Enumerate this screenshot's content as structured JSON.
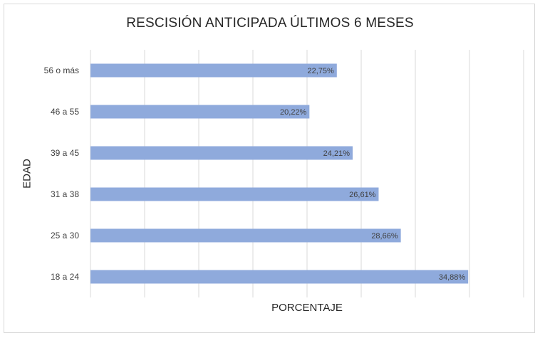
{
  "chart_data": {
    "type": "bar",
    "orientation": "horizontal",
    "title": "RESCISIÓN ANTICIPADA ÚLTIMOS 6 MESES",
    "xlabel": "PORCENTAJE",
    "ylabel": "EDAD",
    "categories": [
      "18 a 24",
      "25 a 30",
      "31 a 38",
      "39 a 45",
      "46 a 55",
      "56 o más"
    ],
    "values": [
      34.88,
      28.66,
      26.61,
      24.21,
      20.22,
      22.75
    ],
    "data_labels": [
      "34,88%",
      "28,66%",
      "26,61%",
      "24,21%",
      "20,22%",
      "22,75%"
    ],
    "xlim": [
      0,
      40
    ],
    "grid": true,
    "bar_color": "#8faadc",
    "gridline_color": "#d9d9d9"
  }
}
